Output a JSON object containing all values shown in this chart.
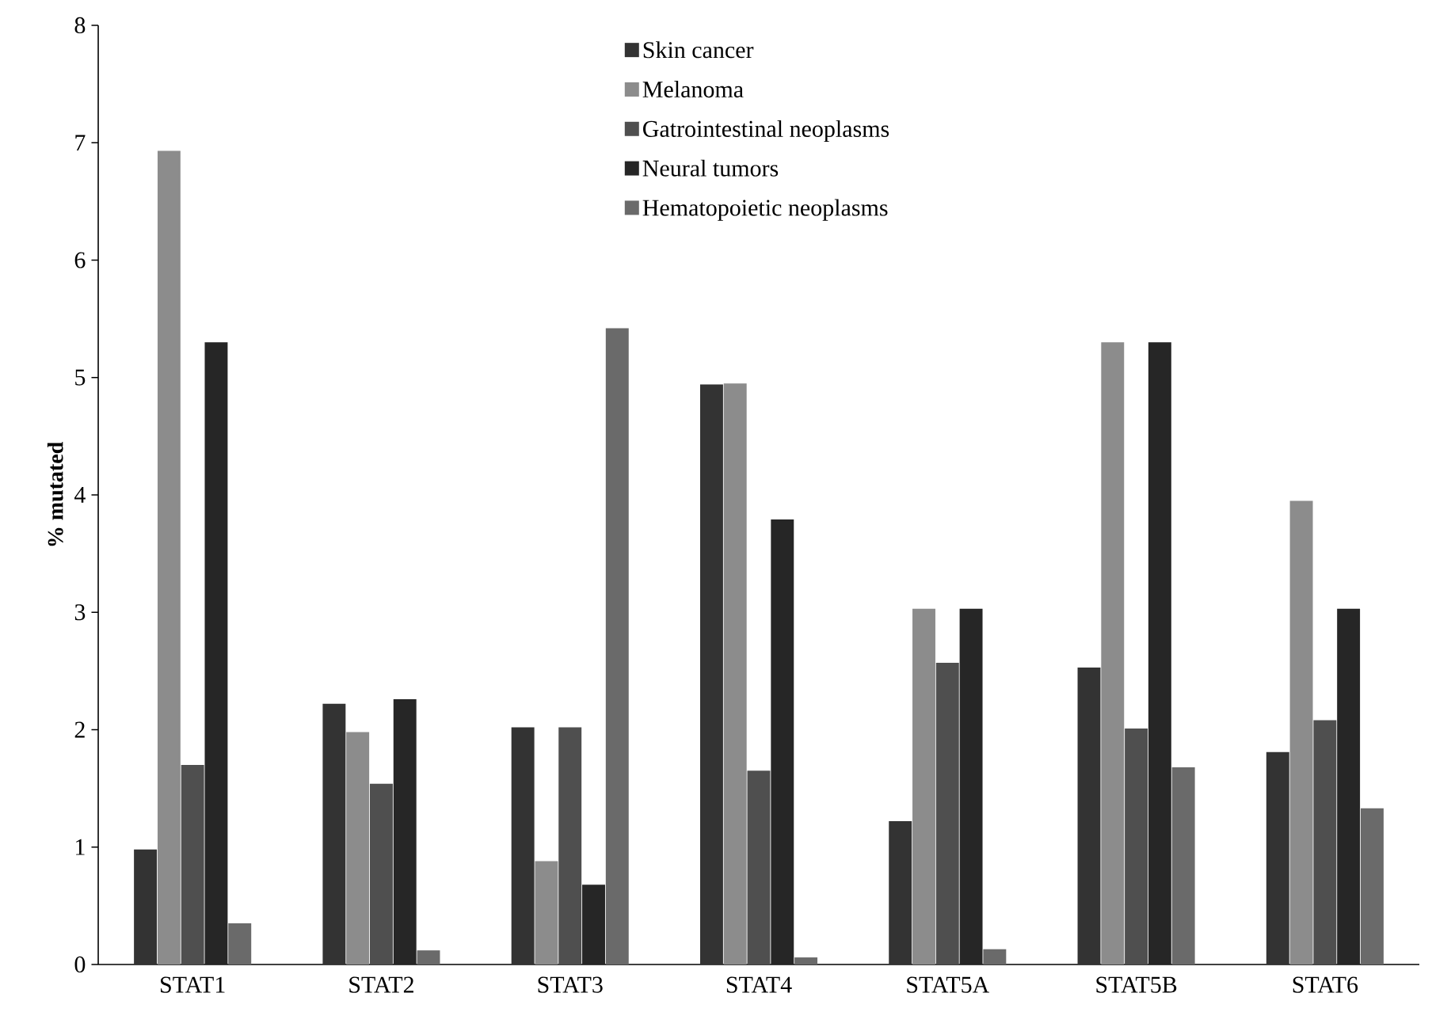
{
  "chart_data": {
    "type": "bar",
    "ylabel": "% mutated",
    "categories": [
      "STAT1",
      "STAT2",
      "STAT3",
      "STAT4",
      "STAT5A",
      "STAT5B",
      "STAT6"
    ],
    "series": [
      {
        "name": "Skin cancer",
        "color": "#333333",
        "values": [
          0.98,
          2.22,
          2.02,
          4.94,
          1.22,
          2.53,
          1.81
        ]
      },
      {
        "name": "Melanoma",
        "color": "#8c8c8c",
        "values": [
          6.93,
          1.98,
          0.88,
          4.95,
          3.03,
          5.3,
          3.95
        ]
      },
      {
        "name": "Gatrointestinal  neoplasms",
        "color": "#4f4f4f",
        "values": [
          1.7,
          1.54,
          2.02,
          1.65,
          2.57,
          2.01,
          2.08
        ]
      },
      {
        "name": "Neural tumors",
        "color": "#262626",
        "values": [
          5.3,
          2.26,
          0.68,
          3.79,
          3.03,
          5.3,
          3.03
        ]
      },
      {
        "name": "Hematopoietic neoplasms",
        "color": "#6a6a6a",
        "values": [
          0.35,
          0.12,
          5.42,
          0.06,
          0.13,
          1.68,
          1.33
        ]
      }
    ],
    "ylim": [
      0,
      8
    ],
    "yticks": [
      0,
      1,
      2,
      3,
      4,
      5,
      6,
      7,
      8
    ],
    "grid": false,
    "legend": "top"
  }
}
